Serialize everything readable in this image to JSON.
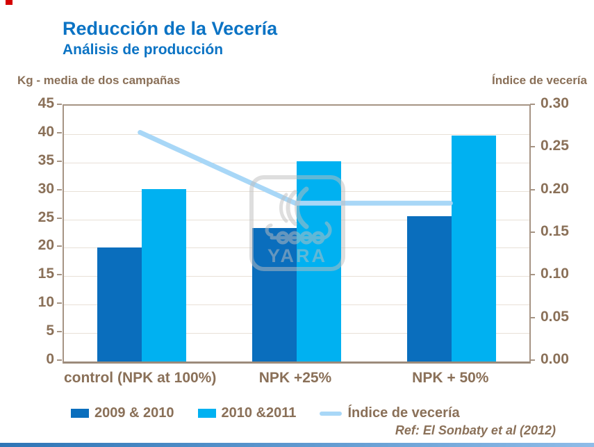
{
  "slide": {
    "title": "Reducción de la Vecería",
    "subtitle": "Análisis de producción",
    "reference": "Ref: El Sonbaty et al (2012)",
    "colors": {
      "title_blue": "#0b73c4",
      "text_brown": "#8a7058",
      "dark_bar": "#0a6ebd",
      "light_bar": "#00b1f1",
      "line": "#a8d7f7",
      "frame": "#a69484",
      "gridline": "#e8e0d7",
      "corner_mark_red": "#d40000",
      "footer_blue": "#2e75b6"
    }
  },
  "watermark": {
    "name": "yara-logo",
    "text": "YARA"
  },
  "chart_data": {
    "type": "bar",
    "subtype": "bar+line dual axis",
    "categories": [
      "control (NPK at 100%)",
      "NPK +25%",
      "NPK + 50%"
    ],
    "series": [
      {
        "name": "2009 & 2010",
        "type": "bar",
        "axis": "left",
        "color": "#0a6ebd",
        "values": [
          20,
          23.5,
          25.5
        ]
      },
      {
        "name": "2010 &2011",
        "type": "bar",
        "axis": "left",
        "color": "#00b1f1",
        "values": [
          30.3,
          35.2,
          39.7
        ]
      },
      {
        "name": "Índice de vecería",
        "type": "line",
        "axis": "right",
        "color": "#a8d7f7",
        "values": [
          0.267,
          0.184,
          0.184
        ]
      }
    ],
    "left_axis": {
      "title": "Kg - media de dos campañas",
      "min": 0,
      "max": 45,
      "step": 5,
      "ticks": [
        "45",
        "40",
        "35",
        "30",
        "25",
        "20",
        "15",
        "10",
        "5",
        "0"
      ]
    },
    "right_axis": {
      "title": "Índice de vecería",
      "min": 0,
      "max": 0.3,
      "step": 0.05,
      "ticks": [
        "0.30",
        "0.25",
        "0.20",
        "0.15",
        "0.10",
        "0.05",
        "0.00"
      ]
    },
    "grid": true,
    "legend_position": "bottom"
  }
}
